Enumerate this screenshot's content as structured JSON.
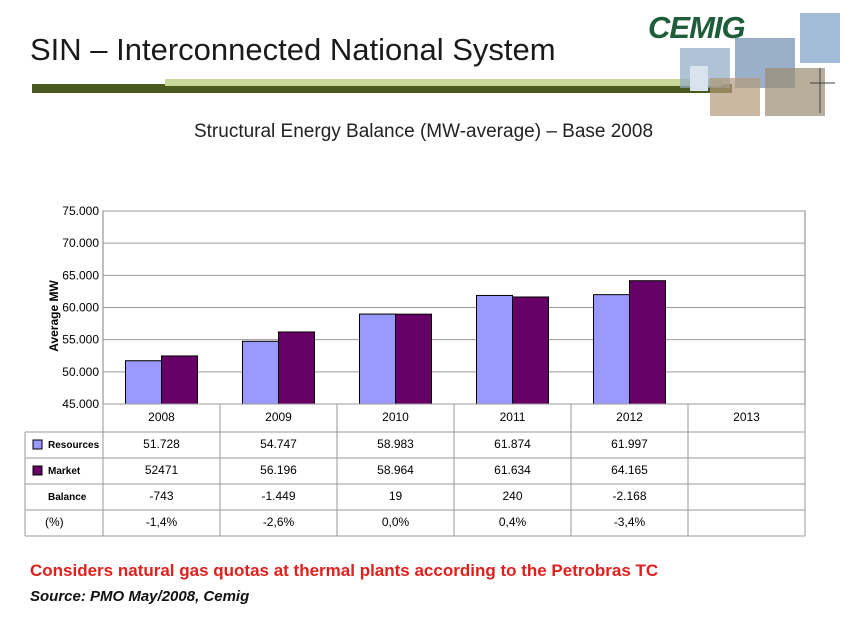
{
  "slide": {
    "title": "SIN – Interconnected National System",
    "subtitle": "Structural Energy Balance (MW-average) – Base 2008",
    "logo_text": "CEMIG",
    "note": "Considers natural gas quotas at thermal plants according to the Petrobras TC",
    "source": "Source: PMO May/2008, Cemig"
  },
  "colors": {
    "resources": "#9999ff",
    "market": "#660066",
    "accent_dark": "#4a5a1e",
    "accent_light": "#c8d79a",
    "note": "#e0201c",
    "logo": "#1f5d3a"
  },
  "chart_data": {
    "type": "bar",
    "ylabel": "Average MW",
    "ylim": [
      45000,
      75000
    ],
    "yticks": [
      "45.000",
      "50.000",
      "55.000",
      "60.000",
      "65.000",
      "70.000",
      "75.000"
    ],
    "ytick_values": [
      45000,
      50000,
      55000,
      60000,
      65000,
      70000,
      75000
    ],
    "grid": true,
    "categories": [
      "2008",
      "2009",
      "2010",
      "2011",
      "2012",
      "2013"
    ],
    "series": [
      {
        "name": "Resources",
        "values": [
          51728,
          54747,
          58983,
          61874,
          61997,
          null
        ]
      },
      {
        "name": "Market",
        "values": [
          52471,
          56196,
          58964,
          61634,
          64165,
          null
        ]
      }
    ],
    "table": {
      "rows": [
        {
          "label": "Resources",
          "cells": [
            "51.728",
            "54.747",
            "58.983",
            "61.874",
            "61.997",
            ""
          ]
        },
        {
          "label": "Market",
          "cells": [
            "52471",
            "56.196",
            "58.964",
            "61.634",
            "64.165",
            ""
          ]
        },
        {
          "label": "Balance",
          "cells": [
            "-743",
            "-1.449",
            "19",
            "240",
            "-2.168",
            ""
          ]
        },
        {
          "label": "(%)",
          "cells": [
            "-1,4%",
            "-2,6%",
            "0,0%",
            "0,4%",
            "-3,4%",
            ""
          ]
        }
      ]
    }
  }
}
